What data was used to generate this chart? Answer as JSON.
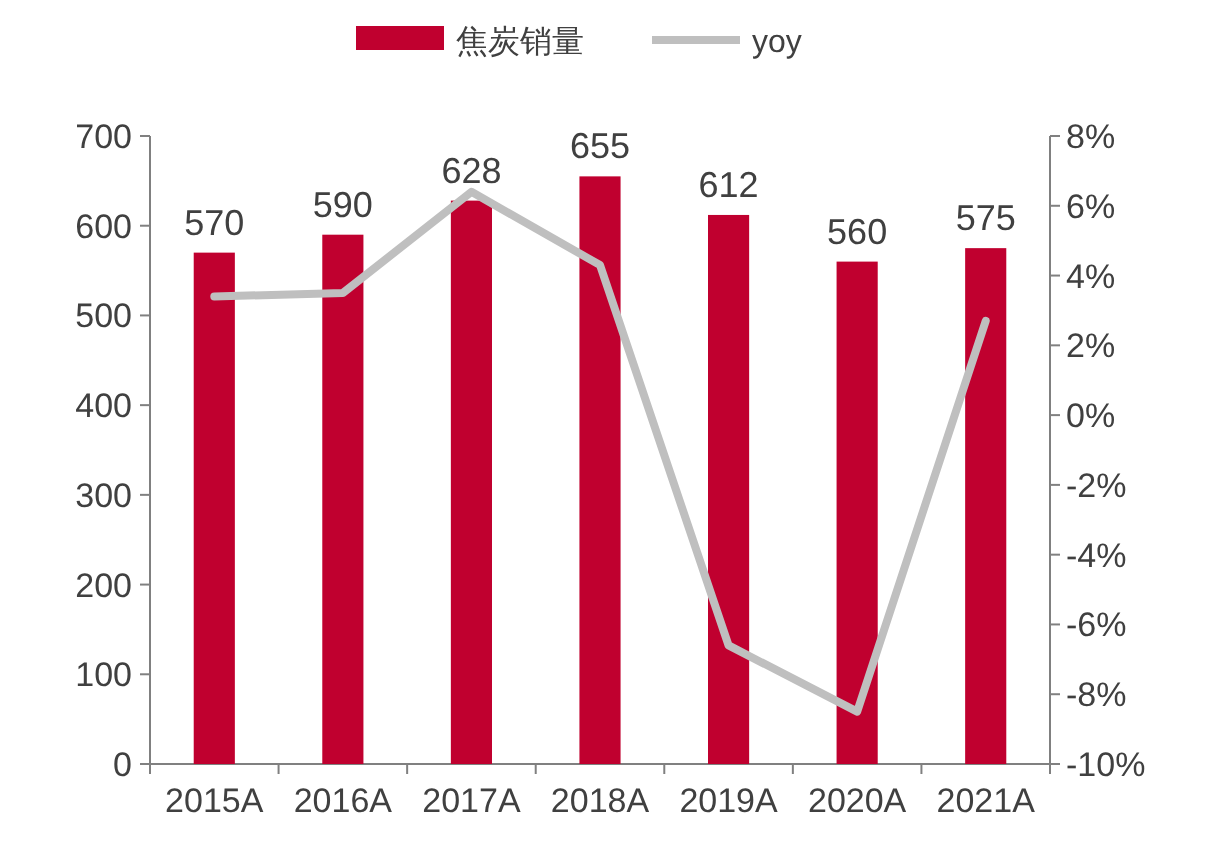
{
  "chart_data": {
    "type": "bar",
    "categories": [
      "2015A",
      "2016A",
      "2017A",
      "2018A",
      "2019A",
      "2020A",
      "2021A"
    ],
    "series": [
      {
        "name": "焦炭销量",
        "color": "#c0002f",
        "values": [
          570,
          590,
          628,
          655,
          612,
          560,
          575
        ],
        "data_labels": true
      },
      {
        "name": "yoy",
        "type": "line",
        "axis": "y2",
        "color": "#bfbfbf",
        "values": [
          3.4,
          3.5,
          6.4,
          4.3,
          -6.6,
          -8.5,
          2.7
        ]
      }
    ],
    "ylim": [
      0,
      700
    ],
    "yticks": [
      0,
      100,
      200,
      300,
      400,
      500,
      600,
      700
    ],
    "y2lim": [
      -10,
      8
    ],
    "y2ticks": [
      {
        "value": -10,
        "label": "-10%"
      },
      {
        "value": -8,
        "label": "-8%"
      },
      {
        "value": -6,
        "label": "-6%"
      },
      {
        "value": -4,
        "label": "-4%"
      },
      {
        "value": -2,
        "label": "-2%"
      },
      {
        "value": 0,
        "label": "0%"
      },
      {
        "value": 2,
        "label": "2%"
      },
      {
        "value": 4,
        "label": "4%"
      },
      {
        "value": 6,
        "label": "6%"
      },
      {
        "value": 8,
        "label": "8%"
      }
    ],
    "legend": "top",
    "marker": "none"
  }
}
